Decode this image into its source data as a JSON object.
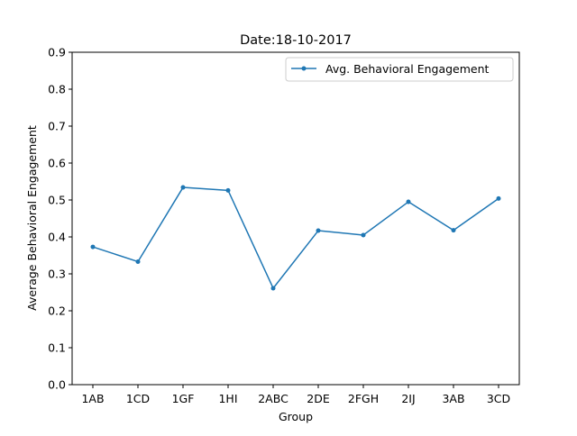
{
  "chart_data": {
    "type": "line",
    "title": "Date:18-10-2017",
    "xlabel": "Group",
    "ylabel": "Average Behavioral Engagement",
    "categories": [
      "1AB",
      "1CD",
      "1GF",
      "1HI",
      "2ABC",
      "2DE",
      "2FGH",
      "2IJ",
      "3AB",
      "3CD"
    ],
    "series": [
      {
        "name": "Avg. Behavioral Engagement",
        "values": [
          0.373,
          0.333,
          0.534,
          0.526,
          0.261,
          0.417,
          0.405,
          0.495,
          0.418,
          0.504
        ]
      }
    ],
    "ylim": [
      0,
      0.9
    ],
    "yticks": [
      "0.0",
      "0.1",
      "0.2",
      "0.3",
      "0.4",
      "0.5",
      "0.6",
      "0.7",
      "0.8",
      "0.9"
    ],
    "grid": false,
    "legend_position": "top-right",
    "colors": {
      "series": "#1f77b4",
      "axes": "#000000",
      "background": "#ffffff"
    }
  }
}
